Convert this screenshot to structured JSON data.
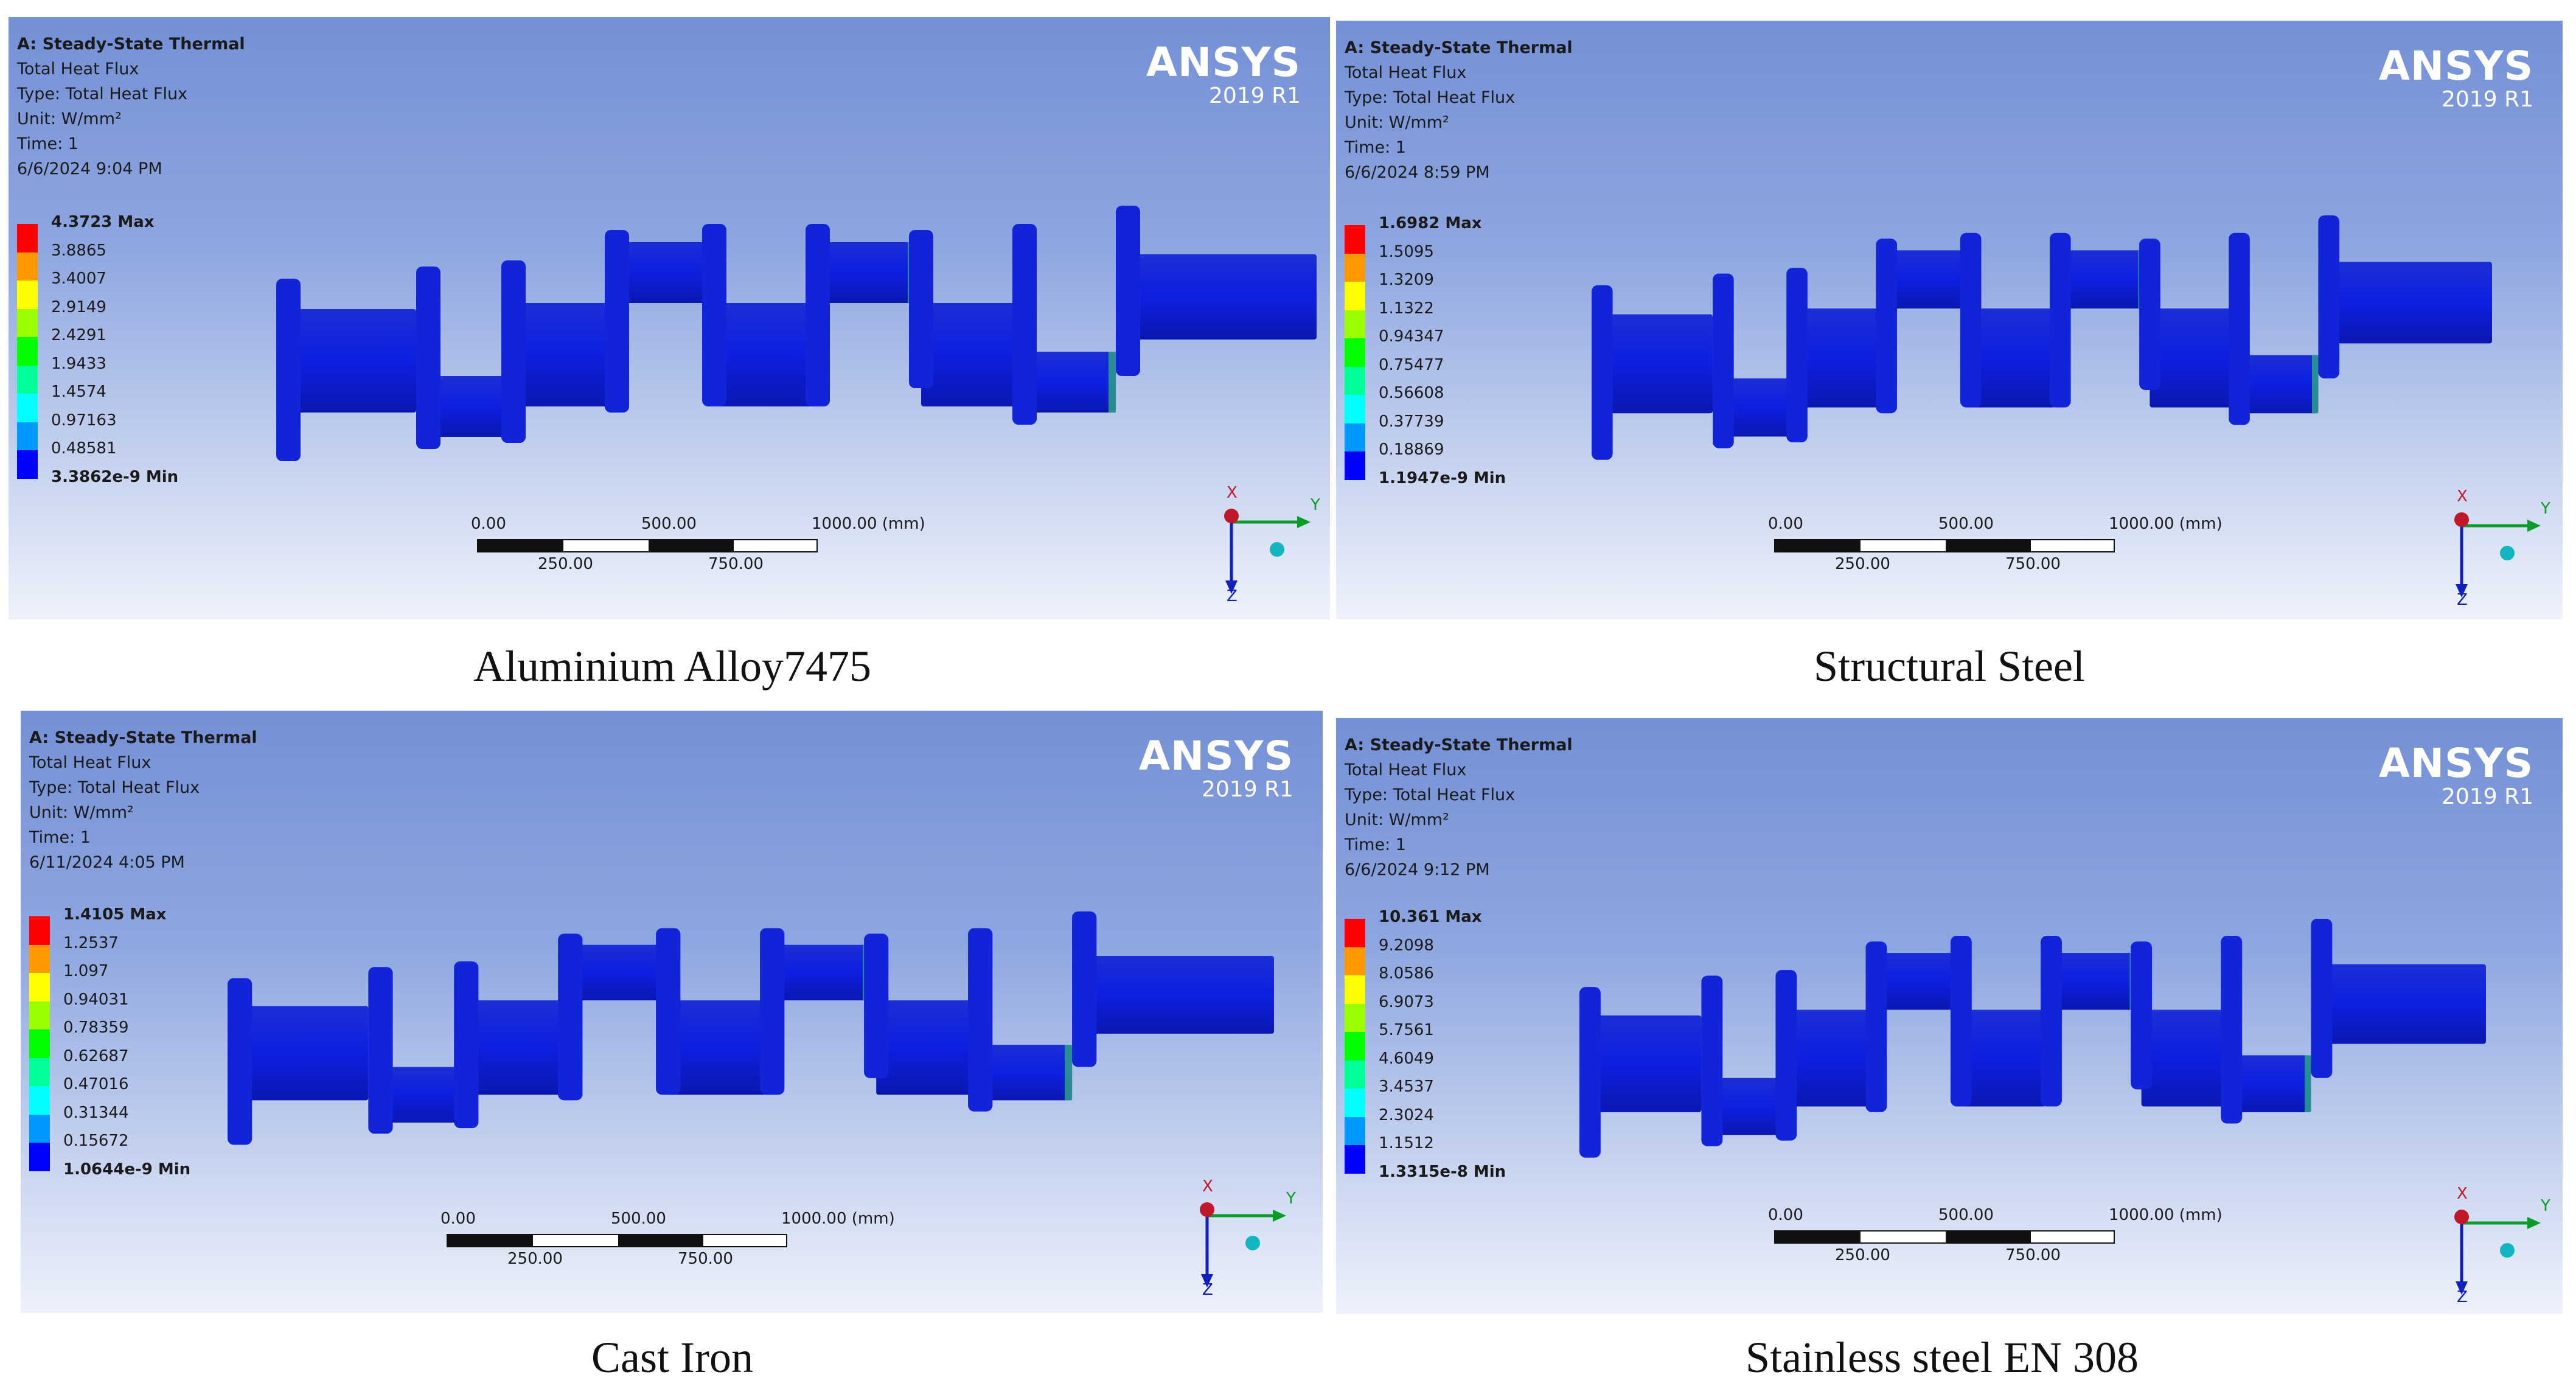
{
  "panels": [
    {
      "caption": "Aluminium Alloy7475",
      "title": "A: Steady-State Thermal",
      "result": "Total Heat Flux",
      "type": "Type: Total Heat Flux",
      "unit": "Unit: W/mm²",
      "time": "Time: 1",
      "date": "6/6/2024 9:04 PM",
      "legend": [
        "4.3723 Max",
        "3.8865",
        "3.4007",
        "2.9149",
        "2.4291",
        "1.9433",
        "1.4574",
        "0.97163",
        "0.48581",
        "3.3862e-9 Min"
      ]
    },
    {
      "caption": "Structural Steel",
      "title": "A: Steady-State Thermal",
      "result": "Total Heat Flux",
      "type": "Type: Total Heat Flux",
      "unit": "Unit: W/mm²",
      "time": "Time: 1",
      "date": "6/6/2024 8:59 PM",
      "legend": [
        "1.6982 Max",
        "1.5095",
        "1.3209",
        "1.1322",
        "0.94347",
        "0.75477",
        "0.56608",
        "0.37739",
        "0.18869",
        "1.1947e-9 Min"
      ]
    },
    {
      "caption": "Cast Iron",
      "title": "A: Steady-State Thermal",
      "result": "Total Heat Flux",
      "type": "Type: Total Heat Flux",
      "unit": "Unit: W/mm²",
      "time": "Time: 1",
      "date": "6/11/2024 4:05 PM",
      "legend": [
        "1.4105 Max",
        "1.2537",
        "1.097",
        "0.94031",
        "0.78359",
        "0.62687",
        "0.47016",
        "0.31344",
        "0.15672",
        "1.0644e-9 Min"
      ]
    },
    {
      "caption": "Stainless steel EN 308",
      "title": "A: Steady-State Thermal",
      "result": "Total Heat Flux",
      "type": "Type: Total Heat Flux",
      "unit": "Unit: W/mm²",
      "time": "Time: 1",
      "date": "6/6/2024 9:12 PM",
      "legend": [
        "10.361 Max",
        "9.2098",
        "8.0586",
        "6.9073",
        "5.7561",
        "4.6049",
        "3.4537",
        "2.3024",
        "1.1512",
        "1.3315e-8 Min"
      ]
    }
  ],
  "brand": {
    "name": "ANSYS",
    "version": "2019 R1"
  },
  "scale_labels": {
    "top": [
      "0.00",
      "500.00",
      "1000.00 (mm)"
    ],
    "bottom": [
      "250.00",
      "750.00"
    ]
  },
  "triad_labels": {
    "x": "X",
    "y": "Y",
    "z": "Z"
  },
  "legend_colors": [
    "#ff0000",
    "#ff9900",
    "#ffff00",
    "#99ff00",
    "#00ff00",
    "#00ff99",
    "#00ffff",
    "#0099ff",
    "#0000ff"
  ]
}
